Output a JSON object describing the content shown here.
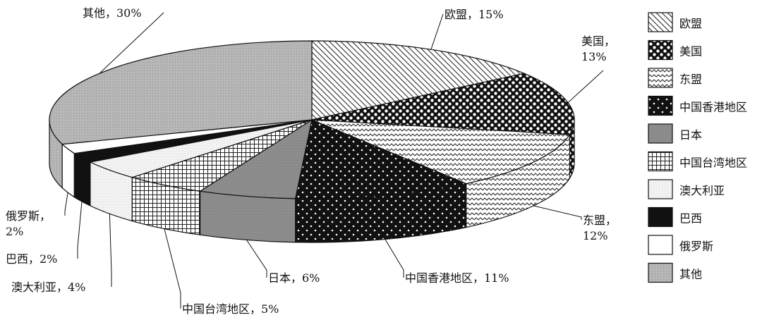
{
  "chart_data": {
    "type": "pie",
    "style": "3d-exploded-pie",
    "legend_position": "right",
    "slices": [
      {
        "name": "欧盟",
        "value": 15,
        "label": "欧盟，15%",
        "pattern": "diag-hatch"
      },
      {
        "name": "美国",
        "value": 13,
        "label_line1": "美国，",
        "label_line2": "13%",
        "pattern": "checker"
      },
      {
        "name": "东盟",
        "value": 12,
        "label_line1": "东盟，",
        "label_line2": "12%",
        "pattern": "wave"
      },
      {
        "name": "中国香港地区",
        "value": 11,
        "label": "中国香港地区，11%",
        "pattern": "dots"
      },
      {
        "name": "日本",
        "value": 6,
        "label": "日本，6%",
        "pattern": "gray"
      },
      {
        "name": "中国台湾地区",
        "value": 5,
        "label": "中国台湾地区，5%",
        "pattern": "grid"
      },
      {
        "name": "澳大利亚",
        "value": 4,
        "label": "澳大利亚，4%",
        "pattern": "lightgray"
      },
      {
        "name": "巴西",
        "value": 2,
        "label": "巴西，2%",
        "pattern": "black"
      },
      {
        "name": "俄罗斯",
        "value": 2,
        "label_line1": "俄罗斯，",
        "label_line2": "2%",
        "pattern": "white"
      },
      {
        "name": "其他",
        "value": 30,
        "label": "其他，30%",
        "pattern": "stipple"
      }
    ],
    "legend": [
      "欧盟",
      "美国",
      "东盟",
      "中国香港地区",
      "日本",
      "中国台湾地区",
      "澳大利亚",
      "巴西",
      "俄罗斯",
      "其他"
    ]
  }
}
